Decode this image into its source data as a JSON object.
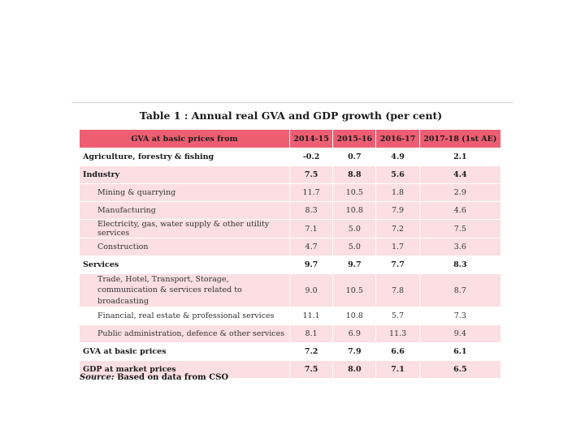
{
  "title": "Table 1 : Annual real GVA and GDP growth (per cent)",
  "columns": [
    "GVA at basic prices from",
    "2014-15",
    "2015-16",
    "2016-17",
    "2017-18 (1st AE)"
  ],
  "rows": [
    {
      "label": "Agriculture, forestry & fishing",
      "values": [
        "-0.2",
        "0.7",
        "4.9",
        "2.1"
      ]
    },
    {
      "label": "Industry",
      "values": [
        "7.5",
        "8.8",
        "5.6",
        "4.4"
      ]
    },
    {
      "label": "Mining & quarrying",
      "values": [
        "11.7",
        "10.5",
        "1.8",
        "2.9"
      ]
    },
    {
      "label": "Manufacturing",
      "values": [
        "8.3",
        "10.8",
        "7.9",
        "4.6"
      ]
    },
    {
      "label": "Electricity, gas, water supply & other utility services",
      "values": [
        "7.1",
        "5.0",
        "7.2",
        "7.5"
      ]
    },
    {
      "label": "Construction",
      "values": [
        "4.7",
        "5.0",
        "1.7",
        "3.6"
      ]
    },
    {
      "label": "Services",
      "values": [
        "9.7",
        "9.7",
        "7.7",
        "8.3"
      ]
    },
    {
      "label": "Trade, Hotel, Transport, Storage, communication & services related to broadcasting",
      "values": [
        "9.0",
        "10.5",
        "7.8",
        "8.7"
      ]
    },
    {
      "label": "Financial, real estate & professional services",
      "values": [
        "11.1",
        "10.8",
        "5.7",
        "7.3"
      ]
    },
    {
      "label": "Public administration, defence & other services",
      "values": [
        "8.1",
        "6.9",
        "11.3",
        "9.4"
      ]
    },
    {
      "label": "GVA at basic prices",
      "values": [
        "7.2",
        "7.9",
        "6.6",
        "6.1"
      ]
    },
    {
      "label": "GDP at market prices",
      "values": [
        "7.5",
        "8.0",
        "7.1",
        "6.5"
      ]
    }
  ],
  "source": {
    "label": "Source:",
    "text": "Based on data from CSO"
  },
  "colors": {
    "header": "#ee5e73",
    "row_pink": "#fbdfe2",
    "row_white": "#ffffff"
  }
}
